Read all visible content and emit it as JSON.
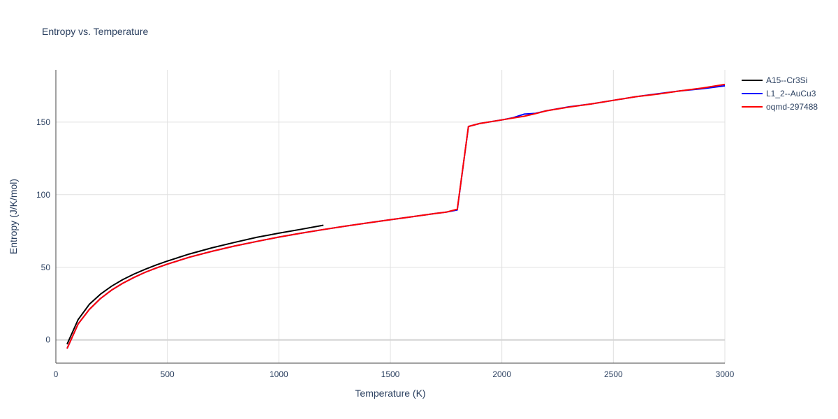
{
  "chart_data": {
    "type": "line",
    "title": "Entropy vs. Temperature",
    "xlabel": "Temperature (K)",
    "ylabel": "Entropy (J/K/mol)",
    "xlim": [
      0,
      3000
    ],
    "ylim": [
      -16,
      186
    ],
    "xticks": [
      0,
      500,
      1000,
      1500,
      2000,
      2500,
      3000
    ],
    "yticks": [
      0,
      50,
      100,
      150
    ],
    "grid": true,
    "legend_position": "top-right",
    "series": [
      {
        "name": "A15--Cr3Si",
        "color": "#000000",
        "x": [
          50,
          100,
          150,
          200,
          250,
          300,
          350,
          400,
          450,
          500,
          600,
          700,
          800,
          900,
          1000,
          1100,
          1200
        ],
        "y": [
          -3,
          14,
          24.5,
          31.5,
          37,
          41.5,
          45.3,
          48.6,
          51.6,
          54.3,
          59.2,
          63.4,
          67.1,
          70.6,
          73.5,
          76.2,
          79
        ]
      },
      {
        "name": "L1_2--AuCu3",
        "color": "#0000ff",
        "x": [
          50,
          100,
          150,
          200,
          250,
          300,
          350,
          400,
          450,
          500,
          600,
          700,
          800,
          900,
          1000,
          1100,
          1200,
          1300,
          1400,
          1500,
          1600,
          1700,
          1750,
          1800,
          1850,
          1900,
          2000,
          2050,
          2100,
          2150,
          2200,
          2300,
          2400,
          2500,
          2600,
          2700,
          2800,
          2900,
          3000
        ],
        "y": [
          -6,
          11,
          21,
          28.5,
          34.3,
          39,
          43,
          46.5,
          49.5,
          52.2,
          57,
          61,
          64.6,
          67.8,
          70.8,
          73.5,
          76,
          78.4,
          80.6,
          82.8,
          84.9,
          87,
          88,
          89.5,
          147,
          149,
          151.5,
          153,
          155.5,
          156,
          157.8,
          160.5,
          162.5,
          165,
          167.5,
          169.5,
          171.5,
          173,
          175
        ]
      },
      {
        "name": "oqmd-297488",
        "color": "#ff0000",
        "x": [
          50,
          100,
          150,
          200,
          250,
          300,
          350,
          400,
          450,
          500,
          600,
          700,
          800,
          900,
          1000,
          1100,
          1200,
          1300,
          1400,
          1500,
          1600,
          1700,
          1750,
          1800,
          1850,
          1900,
          2000,
          2050,
          2100,
          2150,
          2200,
          2300,
          2400,
          2500,
          2600,
          2700,
          2800,
          2900,
          3000
        ],
        "y": [
          -6,
          11,
          21,
          28.5,
          34.3,
          39,
          43,
          46.5,
          49.5,
          52.2,
          57,
          61,
          64.6,
          67.8,
          70.8,
          73.5,
          76,
          78.4,
          80.6,
          82.8,
          84.9,
          87,
          88,
          90,
          147,
          149,
          151.5,
          152.8,
          154,
          155.8,
          157.8,
          160.3,
          162.5,
          165,
          167.5,
          169.3,
          171.5,
          173.5,
          176
        ]
      }
    ]
  }
}
